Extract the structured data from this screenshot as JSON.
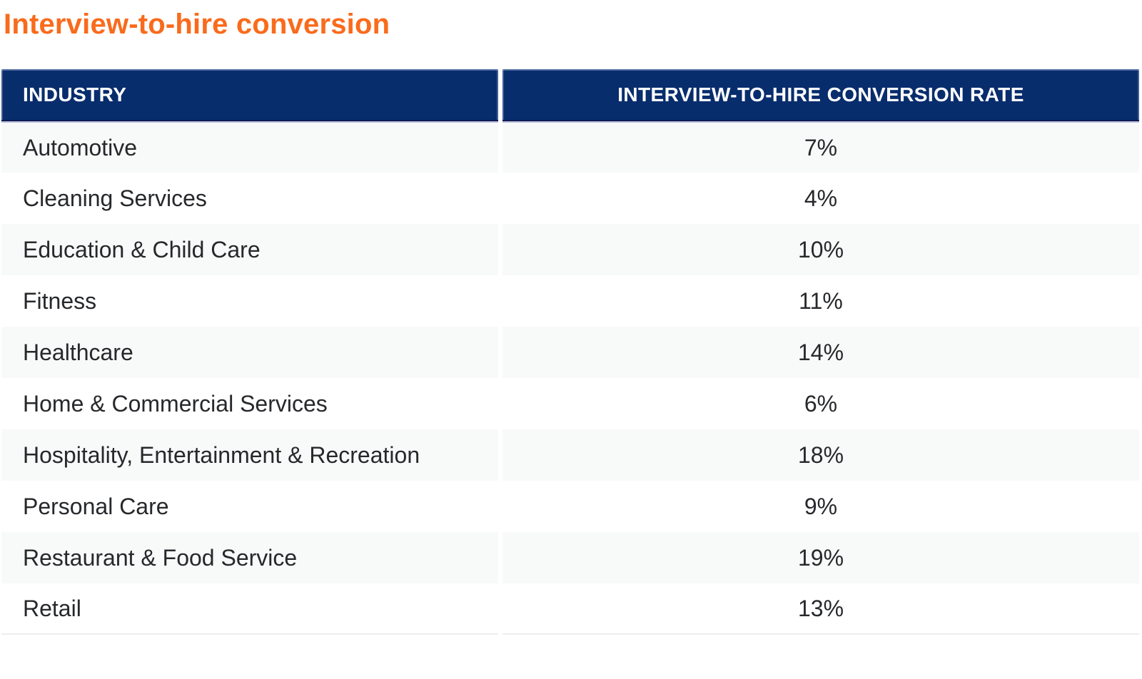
{
  "page_title": "Interview-to-hire conversion",
  "table": {
    "headers": [
      "INDUSTRY",
      "INTERVIEW-TO-HIRE CONVERSION RATE"
    ],
    "rows": [
      {
        "industry": "Automotive",
        "rate": "7%"
      },
      {
        "industry": "Cleaning Services",
        "rate": "4%"
      },
      {
        "industry": "Education & Child Care",
        "rate": "10%"
      },
      {
        "industry": "Fitness",
        "rate": "11%"
      },
      {
        "industry": "Healthcare",
        "rate": "14%"
      },
      {
        "industry": "Home & Commercial Services",
        "rate": "6%"
      },
      {
        "industry": "Hospitality, Entertainment & Recreation",
        "rate": "18%"
      },
      {
        "industry": "Personal Care",
        "rate": "9%"
      },
      {
        "industry": "Restaurant & Food Service",
        "rate": "19%"
      },
      {
        "industry": "Retail",
        "rate": "13%"
      }
    ]
  },
  "colors": {
    "title_orange": "#F96B1C",
    "header_navy": "#082D6D",
    "header_text": "#FFFFFF",
    "row_stripe": "#F8F9F9",
    "row_text": "#26282B"
  },
  "chart_data": {
    "type": "table",
    "title": "Interview-to-hire conversion",
    "columns": [
      "INDUSTRY",
      "INTERVIEW-TO-HIRE CONVERSION RATE"
    ],
    "categories": [
      "Automotive",
      "Cleaning Services",
      "Education & Child Care",
      "Fitness",
      "Healthcare",
      "Home & Commercial Services",
      "Hospitality, Entertainment & Recreation",
      "Personal Care",
      "Restaurant & Food Service",
      "Retail"
    ],
    "values": [
      7,
      4,
      10,
      11,
      14,
      6,
      18,
      9,
      19,
      13
    ],
    "units": "percent",
    "layout_hints": {
      "striped_rows": true,
      "stripe_on": "odd_rows",
      "value_alignment": "center",
      "header_style": "navy-background-white-uppercase"
    }
  }
}
